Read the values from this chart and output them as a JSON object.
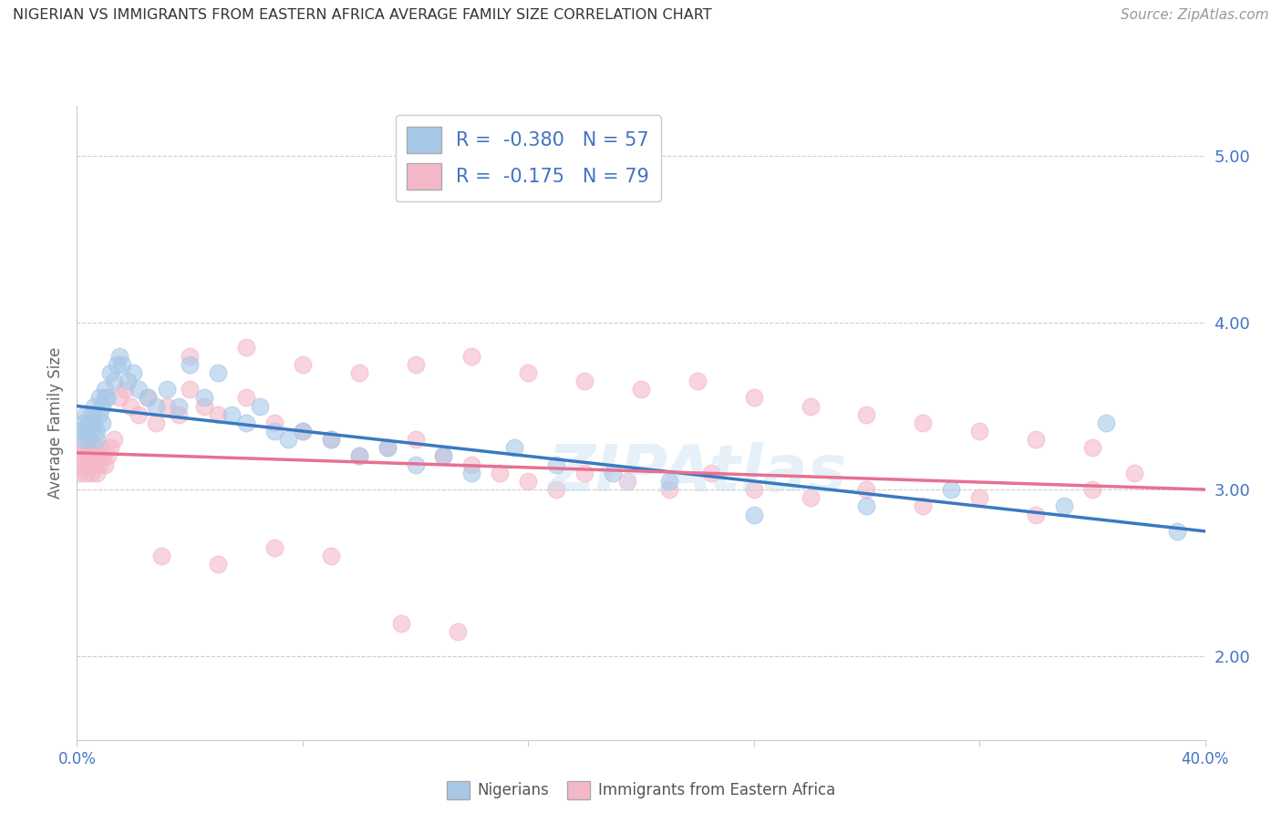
{
  "title": "NIGERIAN VS IMMIGRANTS FROM EASTERN AFRICA AVERAGE FAMILY SIZE CORRELATION CHART",
  "source": "Source: ZipAtlas.com",
  "ylabel": "Average Family Size",
  "xlim": [
    0.0,
    0.4
  ],
  "ylim": [
    1.5,
    5.3
  ],
  "yticks": [
    2.0,
    3.0,
    4.0,
    5.0
  ],
  "xticks": [
    0.0,
    0.08,
    0.16,
    0.24,
    0.32,
    0.4
  ],
  "xtick_labels": [
    "0.0%",
    "",
    "",
    "",
    "",
    "40.0%"
  ],
  "legend_r1": "R =  -0.380",
  "legend_n1": "N = 57",
  "legend_r2": "R =  -0.175",
  "legend_n2": "N = 79",
  "color_blue": "#a8c8e8",
  "color_pink": "#f4b8c8",
  "line_color_blue": "#3a7abf",
  "line_color_pink": "#e87090",
  "blue_line_x0": 0.0,
  "blue_line_y0": 3.5,
  "blue_line_x1": 0.4,
  "blue_line_y1": 2.75,
  "pink_line_x0": 0.0,
  "pink_line_y0": 3.22,
  "pink_line_x1": 0.4,
  "pink_line_y1": 3.0,
  "blue_scatter_x": [
    0.001,
    0.002,
    0.002,
    0.003,
    0.003,
    0.004,
    0.004,
    0.005,
    0.005,
    0.006,
    0.006,
    0.007,
    0.007,
    0.008,
    0.008,
    0.009,
    0.009,
    0.01,
    0.01,
    0.011,
    0.012,
    0.013,
    0.014,
    0.015,
    0.016,
    0.018,
    0.02,
    0.022,
    0.025,
    0.028,
    0.032,
    0.036,
    0.04,
    0.045,
    0.05,
    0.055,
    0.06,
    0.065,
    0.07,
    0.075,
    0.08,
    0.09,
    0.1,
    0.11,
    0.12,
    0.13,
    0.14,
    0.155,
    0.17,
    0.19,
    0.21,
    0.24,
    0.28,
    0.31,
    0.35,
    0.365,
    0.39
  ],
  "blue_scatter_y": [
    3.35,
    3.4,
    3.3,
    3.45,
    3.35,
    3.4,
    3.3,
    3.35,
    3.45,
    3.4,
    3.5,
    3.35,
    3.3,
    3.45,
    3.55,
    3.4,
    3.5,
    3.55,
    3.6,
    3.55,
    3.7,
    3.65,
    3.75,
    3.8,
    3.75,
    3.65,
    3.7,
    3.6,
    3.55,
    3.5,
    3.6,
    3.5,
    3.75,
    3.55,
    3.7,
    3.45,
    3.4,
    3.5,
    3.35,
    3.3,
    3.35,
    3.3,
    3.2,
    3.25,
    3.15,
    3.2,
    3.1,
    3.25,
    3.15,
    3.1,
    3.05,
    2.85,
    2.9,
    3.0,
    2.9,
    3.4,
    2.75
  ],
  "pink_scatter_x": [
    0.001,
    0.001,
    0.002,
    0.002,
    0.003,
    0.003,
    0.004,
    0.004,
    0.005,
    0.005,
    0.006,
    0.006,
    0.007,
    0.007,
    0.008,
    0.008,
    0.009,
    0.01,
    0.011,
    0.012,
    0.013,
    0.015,
    0.017,
    0.019,
    0.022,
    0.025,
    0.028,
    0.032,
    0.036,
    0.04,
    0.045,
    0.05,
    0.06,
    0.07,
    0.08,
    0.09,
    0.1,
    0.11,
    0.12,
    0.13,
    0.14,
    0.15,
    0.16,
    0.17,
    0.18,
    0.195,
    0.21,
    0.225,
    0.24,
    0.26,
    0.28,
    0.3,
    0.32,
    0.34,
    0.36,
    0.04,
    0.06,
    0.08,
    0.1,
    0.12,
    0.14,
    0.16,
    0.18,
    0.2,
    0.22,
    0.24,
    0.26,
    0.28,
    0.3,
    0.32,
    0.34,
    0.36,
    0.375,
    0.03,
    0.05,
    0.07,
    0.09,
    0.115,
    0.135
  ],
  "pink_scatter_y": [
    3.2,
    3.1,
    3.15,
    3.25,
    3.1,
    3.2,
    3.15,
    3.25,
    3.1,
    3.2,
    3.25,
    3.15,
    3.2,
    3.1,
    3.25,
    3.15,
    3.2,
    3.15,
    3.2,
    3.25,
    3.3,
    3.55,
    3.6,
    3.5,
    3.45,
    3.55,
    3.4,
    3.5,
    3.45,
    3.6,
    3.5,
    3.45,
    3.55,
    3.4,
    3.35,
    3.3,
    3.2,
    3.25,
    3.3,
    3.2,
    3.15,
    3.1,
    3.05,
    3.0,
    3.1,
    3.05,
    3.0,
    3.1,
    3.0,
    2.95,
    3.0,
    2.9,
    2.95,
    2.85,
    3.0,
    3.8,
    3.85,
    3.75,
    3.7,
    3.75,
    3.8,
    3.7,
    3.65,
    3.6,
    3.65,
    3.55,
    3.5,
    3.45,
    3.4,
    3.35,
    3.3,
    3.25,
    3.1,
    2.6,
    2.55,
    2.65,
    2.6,
    2.2,
    2.15
  ]
}
